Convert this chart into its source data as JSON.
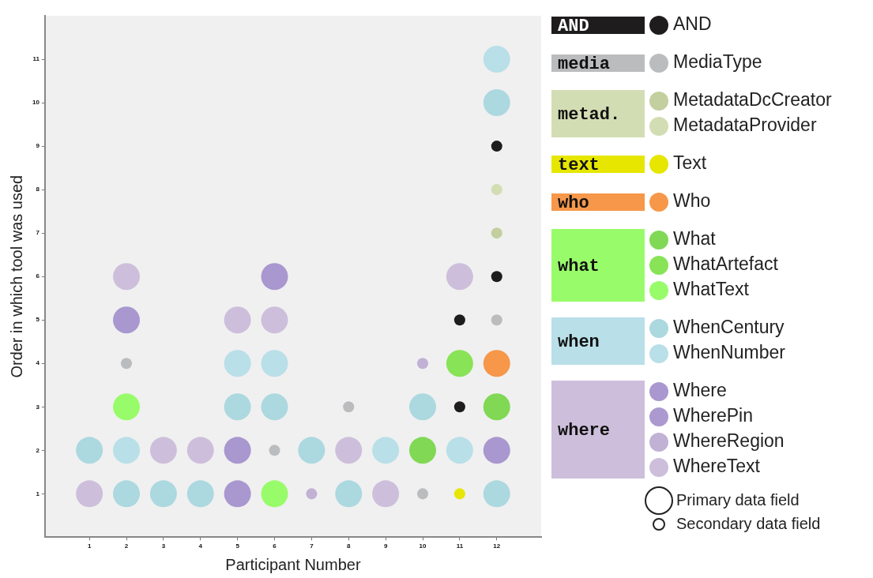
{
  "chart_data": {
    "type": "bubble",
    "xlabel": "Participant Number",
    "ylabel": "Order in which tool was used",
    "xlim": [
      -0.2,
      13.2
    ],
    "xticks": [
      1,
      2,
      3,
      4,
      5,
      6,
      7,
      8,
      9,
      10,
      11,
      12
    ],
    "ylim": [
      0,
      12
    ],
    "yticks": [
      1,
      2,
      3,
      4,
      5,
      6,
      7,
      8,
      9,
      10,
      11
    ],
    "grid": false,
    "legend": "right",
    "annotations": [
      "AND",
      "media",
      "metad.",
      "text",
      "who",
      "what",
      "when",
      "where"
    ],
    "size_legend": [
      {
        "value": 1,
        "label": "Primary data field"
      },
      {
        "value": 0.17,
        "label": "Secondary data field"
      }
    ],
    "series": [
      {
        "name": "AND",
        "color": "#1e1c1d",
        "x": [
          11,
          11,
          12,
          12
        ],
        "values": [
          3,
          5,
          6,
          9
        ],
        "sizes": [
          0.17,
          0.17,
          0.17,
          0.17
        ]
      },
      {
        "name": "MediaType",
        "color": "#bbbcbe",
        "x": [
          2,
          6,
          8,
          10,
          12
        ],
        "values": [
          4,
          2,
          3,
          1,
          5
        ],
        "sizes": [
          0.17,
          0.17,
          0.17,
          0.17,
          0.17
        ]
      },
      {
        "name": "MetadataDcCreator",
        "color": "#c3cf9f",
        "x": [
          12
        ],
        "values": [
          7
        ],
        "sizes": [
          0.17
        ]
      },
      {
        "name": "MetadataProvider",
        "color": "#d3ddb3",
        "x": [
          12
        ],
        "values": [
          8
        ],
        "sizes": [
          0.17
        ]
      },
      {
        "name": "Text",
        "color": "#e6e600",
        "x": [
          11
        ],
        "values": [
          1
        ],
        "sizes": [
          0.17
        ]
      },
      {
        "name": "Who",
        "color": "#f6974a",
        "x": [
          12
        ],
        "values": [
          4
        ],
        "sizes": [
          1
        ]
      },
      {
        "name": "What",
        "color": "#80d855",
        "x": [
          10,
          12
        ],
        "values": [
          2,
          3
        ],
        "sizes": [
          1,
          1
        ]
      },
      {
        "name": "WhatArtefact",
        "color": "#88e356",
        "x": [
          11
        ],
        "values": [
          4
        ],
        "sizes": [
          1
        ]
      },
      {
        "name": "WhatText",
        "color": "#98fc6a",
        "x": [
          2,
          6
        ],
        "values": [
          3,
          1
        ],
        "sizes": [
          1,
          1
        ]
      },
      {
        "name": "WhenCentury",
        "color": "#acd8e0",
        "x": [
          1,
          2,
          3,
          4,
          5,
          6,
          7,
          8,
          10,
          12,
          12
        ],
        "values": [
          2,
          1,
          1,
          1,
          3,
          3,
          2,
          1,
          3,
          1,
          10
        ],
        "sizes": [
          1,
          1,
          1,
          1,
          1,
          1,
          1,
          1,
          1,
          1,
          1
        ]
      },
      {
        "name": "WhenNumber",
        "color": "#b9dfe8",
        "x": [
          2,
          5,
          6,
          9,
          11,
          12
        ],
        "values": [
          2,
          4,
          4,
          2,
          2,
          11
        ],
        "sizes": [
          1,
          1,
          1,
          1,
          1,
          1
        ]
      },
      {
        "name": "Where",
        "color": "#a997cf",
        "x": [
          2,
          5,
          5,
          6,
          12
        ],
        "values": [
          5,
          1,
          2,
          6,
          2
        ],
        "sizes": [
          1,
          1,
          1,
          1,
          1
        ]
      },
      {
        "name": "WherePin",
        "color": "#ab99d0"
      },
      {
        "name": "WhereRegion",
        "color": "#c0b1d5",
        "x": [
          7,
          10
        ],
        "values": [
          1,
          4
        ],
        "sizes": [
          0.17,
          0.17
        ]
      },
      {
        "name": "WhereText",
        "color": "#cdbfdb",
        "x": [
          1,
          2,
          3,
          4,
          5,
          6,
          8,
          9,
          11
        ],
        "values": [
          1,
          6,
          2,
          2,
          5,
          5,
          2,
          1,
          6
        ],
        "sizes": [
          1,
          1,
          1,
          1,
          1,
          1,
          1,
          1,
          1
        ]
      }
    ]
  }
}
